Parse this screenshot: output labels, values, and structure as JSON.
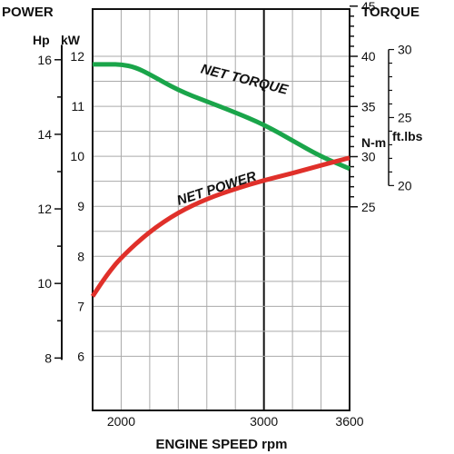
{
  "chart_data": {
    "type": "line",
    "title": "",
    "xlabel": "ENGINE SPEED rpm",
    "xlim": [
      1800,
      3600
    ],
    "xticks": [
      2000,
      3000,
      3600
    ],
    "xtick_labels": [
      "2000",
      "3000",
      "3600"
    ],
    "left_header": "POWER",
    "right_header": "TORQUE",
    "axes": {
      "hp": {
        "unit_label": "Hp",
        "ticks": [
          8,
          10,
          12,
          14,
          16
        ],
        "tick_labels": [
          "8",
          "10",
          "12",
          "14",
          "16"
        ]
      },
      "kw": {
        "unit_label": "kW",
        "range": [
          5.0,
          12.5
        ],
        "ticks": [
          6,
          7,
          8,
          9,
          10,
          11,
          12
        ],
        "tick_labels": [
          "6",
          "7",
          "8",
          "9",
          "10",
          "11",
          "12"
        ]
      },
      "nm": {
        "unit_label": "N-m",
        "ticks": [
          25,
          30,
          35,
          40,
          45
        ],
        "tick_labels": [
          "25",
          "30",
          "35",
          "40",
          "45"
        ]
      },
      "ftlbs": {
        "unit_label": "ft.lbs",
        "ticks": [
          20,
          25,
          30
        ],
        "tick_labels": [
          "20",
          "25",
          "30"
        ]
      }
    },
    "series": [
      {
        "name": "NET TORQUE",
        "axis": "nm",
        "color": "#1aa54a",
        "x": [
          1800,
          1900,
          2000,
          2100,
          2200,
          2400,
          2600,
          2800,
          3000,
          3200,
          3400,
          3600
        ],
        "y": [
          39.2,
          39.2,
          39.2,
          38.9,
          38.2,
          36.6,
          35.5,
          34.4,
          33.2,
          31.6,
          30.0,
          28.8
        ]
      },
      {
        "name": "NET POWER",
        "axis": "kw",
        "color": "#e0302a",
        "x": [
          1800,
          1900,
          2000,
          2200,
          2400,
          2600,
          2800,
          3000,
          3200,
          3400,
          3600
        ],
        "y": [
          7.2,
          7.63,
          7.98,
          8.5,
          8.88,
          9.15,
          9.35,
          9.52,
          9.66,
          9.82,
          9.97
        ]
      }
    ],
    "grid": true
  }
}
